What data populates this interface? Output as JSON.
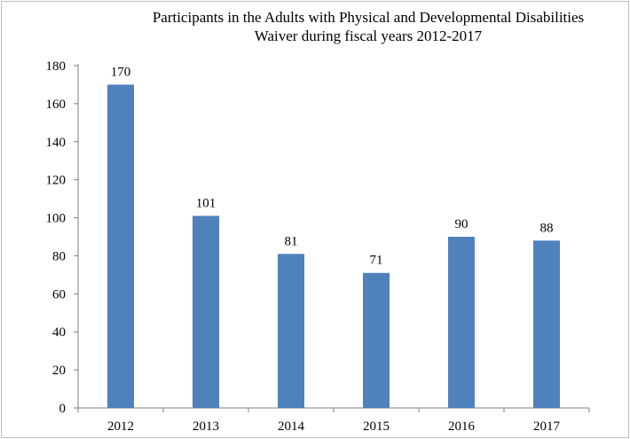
{
  "chart_data": {
    "type": "bar",
    "title_lines": [
      "Participants in the Adults with Physical and Developmental Disabilities",
      "Waiver during fiscal years 2012-2017"
    ],
    "categories": [
      "2012",
      "2013",
      "2014",
      "2015",
      "2016",
      "2017"
    ],
    "values": [
      170,
      101,
      81,
      71,
      90,
      88
    ],
    "data_labels": [
      "170",
      "101",
      "81",
      "71",
      "90",
      "88"
    ],
    "ylim": [
      0,
      180
    ],
    "yticks": [
      "0",
      "20",
      "40",
      "60",
      "80",
      "100",
      "120",
      "140",
      "160",
      "180"
    ],
    "xlabel": "",
    "ylabel": "",
    "grid": false,
    "legend": "none",
    "bar_color": "#4f81bd"
  }
}
